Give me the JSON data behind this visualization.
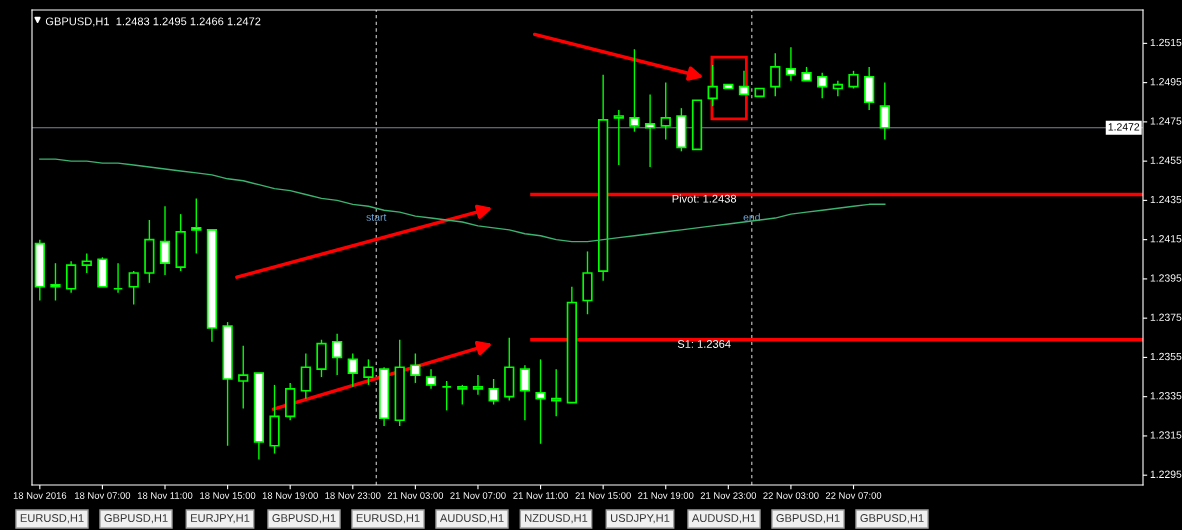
{
  "chart_data": {
    "type": "candlestick",
    "title": "GBPUSD,H1  1.2483 1.2495 1.2466 1.2472",
    "categories": [
      "18 Nov 2016",
      null,
      null,
      null,
      "18 Nov 07:00",
      null,
      null,
      null,
      "18 Nov 11:00",
      null,
      null,
      null,
      "18 Nov 15:00",
      null,
      null,
      null,
      "18 Nov 19:00",
      null,
      null,
      null,
      "18 Nov 23:00",
      null,
      null,
      null,
      "21 Nov 03:00",
      null,
      null,
      null,
      "21 Nov 07:00",
      null,
      null,
      null,
      "21 Nov 11:00",
      null,
      null,
      null,
      "21 Nov 15:00",
      null,
      null,
      null,
      "21 Nov 19:00",
      null,
      null,
      null,
      "21 Nov 23:00",
      null,
      null,
      null,
      "22 Nov 03:00",
      null,
      null,
      null,
      "22 Nov 07:00",
      null,
      null,
      null,
      null,
      null,
      null,
      null,
      null,
      null,
      null,
      null,
      null,
      null,
      null,
      null,
      null,
      null,
      null
    ],
    "ohlc": [
      [
        1.2413,
        1.2415,
        1.2384,
        1.2391
      ],
      [
        1.2392,
        1.2403,
        1.2384,
        1.2391
      ],
      [
        1.239,
        1.2404,
        1.2388,
        1.2402
      ],
      [
        1.2402,
        1.2408,
        1.2398,
        1.2404
      ],
      [
        1.2405,
        1.2406,
        1.2391,
        1.2391
      ],
      [
        1.239,
        1.2403,
        1.2388,
        1.239
      ],
      [
        1.2391,
        1.2399,
        1.2382,
        1.2398
      ],
      [
        1.2398,
        1.2425,
        1.2393,
        1.2415
      ],
      [
        1.2414,
        1.2432,
        1.2397,
        1.2403
      ],
      [
        1.2401,
        1.2428,
        1.2399,
        1.2419
      ],
      [
        1.2421,
        1.2436,
        1.2408,
        1.242
      ],
      [
        1.242,
        1.242,
        1.2363,
        1.237
      ],
      [
        1.2371,
        1.2373,
        1.231,
        1.2344
      ],
      [
        1.2343,
        1.2361,
        1.2329,
        1.2346
      ],
      [
        1.2347,
        1.2347,
        1.2303,
        1.2312
      ],
      [
        1.231,
        1.2341,
        1.2306,
        1.2325
      ],
      [
        1.2325,
        1.2342,
        1.2323,
        1.2339
      ],
      [
        1.2338,
        1.2357,
        1.2334,
        1.235
      ],
      [
        1.2349,
        1.2364,
        1.2345,
        1.2362
      ],
      [
        1.2363,
        1.2367,
        1.2346,
        1.2355
      ],
      [
        1.2354,
        1.2357,
        1.234,
        1.2347
      ],
      [
        1.2345,
        1.2354,
        1.2341,
        1.235
      ],
      [
        1.2349,
        1.235,
        1.232,
        1.2324
      ],
      [
        1.2323,
        1.2364,
        1.232,
        1.235
      ],
      [
        1.2351,
        1.2357,
        1.2342,
        1.2346
      ],
      [
        1.2345,
        1.2349,
        1.2339,
        1.2341
      ],
      [
        1.234,
        1.2343,
        1.2328,
        1.234
      ],
      [
        1.2339,
        1.2341,
        1.2331,
        1.234
      ],
      [
        1.2339,
        1.2346,
        1.2336,
        1.234
      ],
      [
        1.2339,
        1.2344,
        1.2331,
        1.2333
      ],
      [
        1.2335,
        1.2365,
        1.2333,
        1.235
      ],
      [
        1.2349,
        1.2351,
        1.2323,
        1.2338
      ],
      [
        1.2337,
        1.2354,
        1.2311,
        1.2334
      ],
      [
        1.2333,
        1.2349,
        1.2325,
        1.2334
      ],
      [
        1.2332,
        1.2391,
        1.2332,
        1.2383
      ],
      [
        1.2384,
        1.2409,
        1.2377,
        1.2398
      ],
      [
        1.2399,
        1.2499,
        1.2394,
        1.2476
      ],
      [
        1.2477,
        1.2481,
        1.2453,
        1.2478
      ],
      [
        1.2477,
        1.2512,
        1.247,
        1.2473
      ],
      [
        1.2474,
        1.2489,
        1.2452,
        1.2472
      ],
      [
        1.2473,
        1.2495,
        1.2466,
        1.2477
      ],
      [
        1.2478,
        1.2482,
        1.246,
        1.2462
      ],
      [
        1.2461,
        1.2486,
        1.2461,
        1.2486
      ],
      [
        1.2487,
        1.2504,
        1.2483,
        1.2493
      ],
      [
        1.2494,
        1.2494,
        1.2492,
        1.2492
      ],
      [
        1.2493,
        1.2501,
        1.2489,
        1.2489
      ],
      [
        1.2488,
        1.2492,
        1.2488,
        1.2492
      ],
      [
        1.2493,
        1.251,
        1.2488,
        1.2503
      ],
      [
        1.2502,
        1.2513,
        1.2496,
        1.2499
      ],
      [
        1.25,
        1.2503,
        1.2496,
        1.2496
      ],
      [
        1.2498,
        1.25,
        1.2487,
        1.2493
      ],
      [
        1.2492,
        1.2496,
        1.2488,
        1.2494
      ],
      [
        1.2493,
        1.2501,
        1.2492,
        1.2499
      ],
      [
        1.2498,
        1.2503,
        1.2481,
        1.2485
      ],
      [
        1.2483,
        1.2495,
        1.2466,
        1.2472
      ],
      null,
      null,
      null,
      null,
      null,
      null,
      null,
      null,
      null,
      null,
      null,
      null,
      null,
      null,
      null,
      null
    ],
    "series": [
      {
        "type": "line",
        "color": "#3cb371",
        "values": [
          1.2456,
          1.2456,
          1.2455,
          1.2455,
          1.2454,
          1.2454,
          1.2453,
          1.2452,
          1.2451,
          1.245,
          1.2449,
          1.2448,
          1.2446,
          1.2445,
          1.2443,
          1.2441,
          1.244,
          1.2438,
          1.2436,
          1.2435,
          1.2433,
          1.2432,
          1.243,
          1.2429,
          1.2427,
          1.2426,
          1.2425,
          1.2424,
          1.2422,
          1.2421,
          1.242,
          1.2418,
          1.2417,
          1.2415,
          1.2414,
          1.2414,
          1.2415,
          1.2416,
          1.2417,
          1.2418,
          1.2419,
          1.242,
          1.2421,
          1.2422,
          1.2423,
          1.2424,
          1.2425,
          1.2426,
          1.2428,
          1.2429,
          1.243,
          1.2431,
          1.2432,
          1.2433,
          1.2433,
          null,
          null,
          null,
          null,
          null,
          null,
          null,
          null,
          null,
          null,
          null,
          null,
          null,
          null,
          null,
          null
        ]
      }
    ],
    "ylim": [
      1.229,
      1.2532
    ],
    "yticks": [
      1.2295,
      1.2315,
      1.2335,
      1.2355,
      1.2375,
      1.2395,
      1.2415,
      1.2435,
      1.2455,
      1.2475,
      1.2495,
      1.2515
    ],
    "ref_lines": [
      {
        "axis": "y",
        "value": 1.2472,
        "label": "1.2472",
        "color": "#778899"
      },
      {
        "axis": "y",
        "value": 1.2438,
        "label": "Pivot: 1.2438",
        "color": "#ff0000"
      },
      {
        "axis": "y",
        "value": 1.2364,
        "label": "S1: 1.2364",
        "color": "#ff0000"
      }
    ],
    "grid": false,
    "annotations": [
      "start",
      "end",
      "EURUSD,H1",
      "GBPUSD,H1",
      "EURJPY,H1",
      "GBPUSD,H1",
      "EURUSD,H1",
      "AUDUSD,H1",
      "NZDUSD,H1",
      "USDJPY,H1",
      "AUDUSD,H1",
      "GBPUSD,H1",
      "GBPUSD,H1"
    ]
  }
}
